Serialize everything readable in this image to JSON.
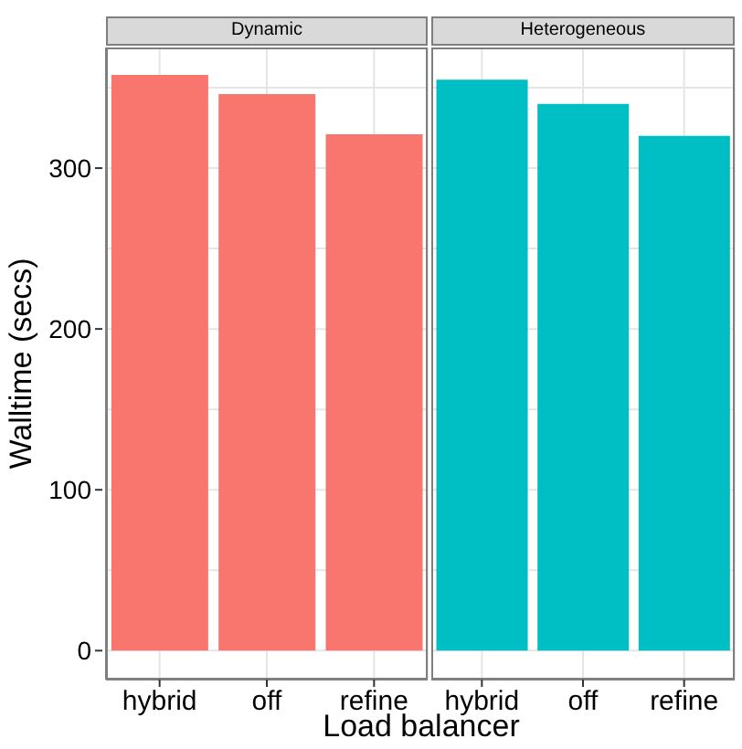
{
  "chart_data": [
    {
      "type": "bar",
      "title": "Dynamic",
      "xlabel": "Load balancer",
      "ylabel": "Walltime (secs)",
      "categories": [
        "hybrid",
        "off",
        "refine"
      ],
      "values": [
        358,
        346,
        321
      ],
      "color": "#f8766d",
      "ylim": [
        -18,
        375
      ],
      "yticks": [
        0,
        {
          "value": 50,
          "label": null
        },
        100,
        {
          "value": 150,
          "label": null
        },
        200,
        {
          "value": 250,
          "label": null
        },
        300,
        {
          "value": 350,
          "label": null
        }
      ],
      "grid": true
    },
    {
      "type": "bar",
      "title": "Heterogeneous",
      "categories": [
        "hybrid",
        "off",
        "refine"
      ],
      "values": [
        355,
        340,
        320
      ],
      "color": "#00bfc4",
      "ylim": [
        -18,
        375
      ],
      "yticks": [
        0,
        {
          "value": 50,
          "label": null
        },
        100,
        {
          "value": 150,
          "label": null
        },
        200,
        {
          "value": 250,
          "label": null
        },
        300,
        {
          "value": 350,
          "label": null
        }
      ],
      "grid": true,
      "tick_labels": "x"
    }
  ]
}
